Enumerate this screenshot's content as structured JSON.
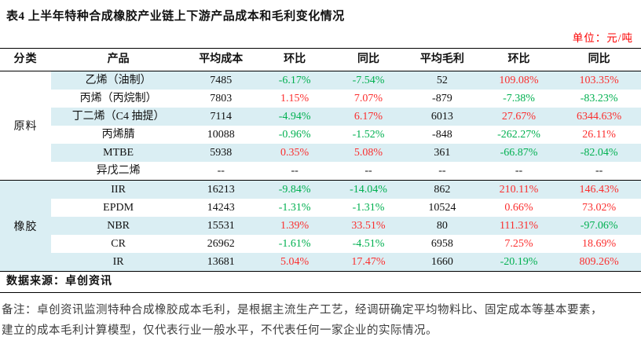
{
  "title": "表4 上半年特种合成橡胶产业链上下游产品成本和毛利变化情况",
  "unit_label": "单位：元/吨",
  "colors": {
    "increase": "#fb2e2e",
    "decrease": "#00b050",
    "neutral": "#111111",
    "row_highlight": "#daeef3",
    "unit_red": "#fb0000"
  },
  "table": {
    "headers": [
      "分类",
      "产品",
      "平均成本",
      "环比",
      "同比",
      "平均毛利",
      "环比",
      "同比"
    ],
    "groups": [
      {
        "category": "原料",
        "category_bg": "plain",
        "rows": [
          {
            "product": "乙烯（油制）",
            "values": [
              "7485",
              "-6.17%",
              "-7.54%",
              "52",
              "109.08%",
              "103.35%"
            ],
            "highlight": true
          },
          {
            "product": "丙烯（丙烷制）",
            "values": [
              "7803",
              "1.15%",
              "7.07%",
              "-879",
              "-7.38%",
              "-83.23%"
            ],
            "highlight": false
          },
          {
            "product": "丁二烯（C4 抽提）",
            "values": [
              "7114",
              "-4.94%",
              "6.17%",
              "6013",
              "27.67%",
              "6344.63%"
            ],
            "highlight": true
          },
          {
            "product": "丙烯腈",
            "values": [
              "10088",
              "-0.96%",
              "-1.52%",
              "-848",
              "-262.27%",
              "26.11%"
            ],
            "highlight": false
          },
          {
            "product": "MTBE",
            "values": [
              "5938",
              "0.35%",
              "5.08%",
              "361",
              "-66.87%",
              "-82.04%"
            ],
            "highlight": true
          },
          {
            "product": "异戊二烯",
            "values": [
              "--",
              "--",
              "--",
              "--",
              "--",
              "--"
            ],
            "highlight": false
          }
        ]
      },
      {
        "category": "橡胶",
        "category_bg": "highlight",
        "rows": [
          {
            "product": "IIR",
            "values": [
              "16213",
              "-9.84%",
              "-14.04%",
              "862",
              "210.11%",
              "146.43%"
            ],
            "highlight": true
          },
          {
            "product": "EPDM",
            "values": [
              "14243",
              "-1.31%",
              "-1.31%",
              "10524",
              "0.66%",
              "73.02%"
            ],
            "highlight": false
          },
          {
            "product": "NBR",
            "values": [
              "15531",
              "1.39%",
              "33.51%",
              "80",
              "111.31%",
              "-97.06%"
            ],
            "highlight": true
          },
          {
            "product": "CR",
            "values": [
              "26962",
              "-1.61%",
              "-4.51%",
              "6958",
              "7.25%",
              "18.69%"
            ],
            "highlight": false
          },
          {
            "product": "IR",
            "values": [
              "13681",
              "5.04%",
              "17.47%",
              "1660",
              "-20.19%",
              "809.26%"
            ],
            "highlight": true
          }
        ]
      }
    ],
    "source": "数据来源：卓创资讯"
  },
  "notes": [
    "备注：卓创资讯监测特种合成橡胶成本毛利，是根据主流生产工艺，经调研确定平均物料比、固定成本等基本要素，",
    "建立的成本毛利计算模型，仅代表行业一般水平，不代表任何一家企业的实际情况。"
  ]
}
